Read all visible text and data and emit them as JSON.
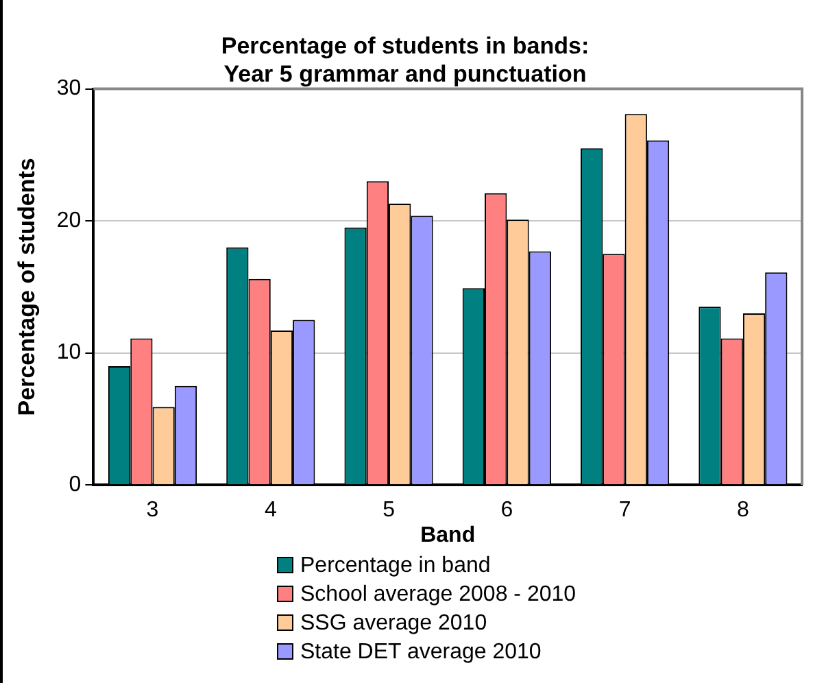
{
  "chart_data": {
    "type": "bar",
    "title": "Percentage of students in bands:\nYear 5 grammar and punctuation",
    "xlabel": "Band",
    "ylabel": "Percentage of students",
    "categories": [
      "3",
      "4",
      "5",
      "6",
      "7",
      "8"
    ],
    "series": [
      {
        "name": "Percentage in band",
        "color": "#008080",
        "values": [
          9.0,
          18.0,
          19.5,
          14.9,
          25.5,
          13.5
        ]
      },
      {
        "name": "School average 2008 - 2010",
        "color": "#ff8080",
        "values": [
          11.1,
          15.6,
          23.0,
          22.1,
          17.5,
          11.1
        ]
      },
      {
        "name": "SSG average 2010",
        "color": "#ffcc99",
        "values": [
          5.9,
          11.7,
          21.3,
          20.1,
          28.1,
          13.0
        ]
      },
      {
        "name": "State DET average 2010",
        "color": "#9999ff",
        "values": [
          7.5,
          12.5,
          20.4,
          17.7,
          26.1,
          16.1
        ]
      }
    ],
    "ylim": [
      0,
      30
    ],
    "yticks": [
      0,
      10,
      20,
      30
    ],
    "grid": "y",
    "legend": "bottom"
  }
}
